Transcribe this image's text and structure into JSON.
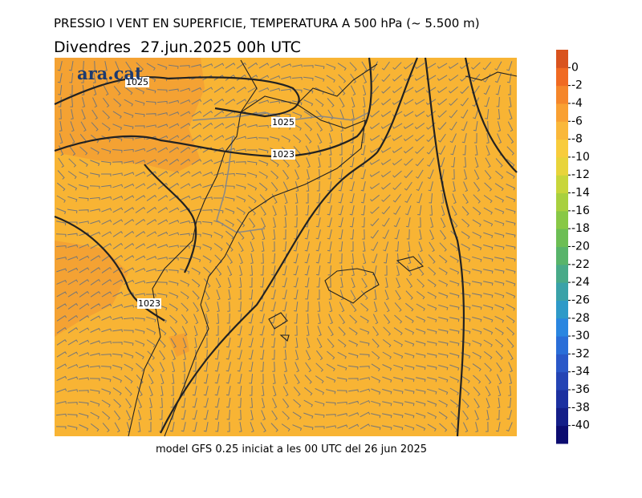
{
  "title": "PRESSIO I VENT EN SUPERFICIE, TEMPERATURA A 500 hPa (~ 5.500 m)",
  "date": "Divendres  27.jun.2025 00h UTC",
  "footer": "model GFS 0.25 iniciat a les 00 UTC del 26 jun 2025",
  "logo": "ara.cat",
  "isobars": [
    1025,
    1025,
    1023,
    1023
  ],
  "colorbar": {
    "lim": [
      -42,
      2
    ],
    "ticks": [
      0,
      -2,
      -4,
      -6,
      -8,
      -10,
      -12,
      -14,
      -16,
      -18,
      -20,
      -22,
      -24,
      -26,
      -28,
      -30,
      -32,
      -34,
      -36,
      -38,
      -40
    ],
    "colors": [
      "#0c0c70",
      "#141e88",
      "#1c30a0",
      "#2444b4",
      "#2a58c8",
      "#2a6ed8",
      "#2a86e0",
      "#2e9ac8",
      "#3aa2a8",
      "#48aa88",
      "#58b46a",
      "#6cbe54",
      "#88c846",
      "#a8d03e",
      "#c8d63a",
      "#e8d43a",
      "#f8cc3c",
      "#fab83a",
      "#f9a032",
      "#f5862a",
      "#f06a22",
      "#d9531e"
    ]
  }
}
